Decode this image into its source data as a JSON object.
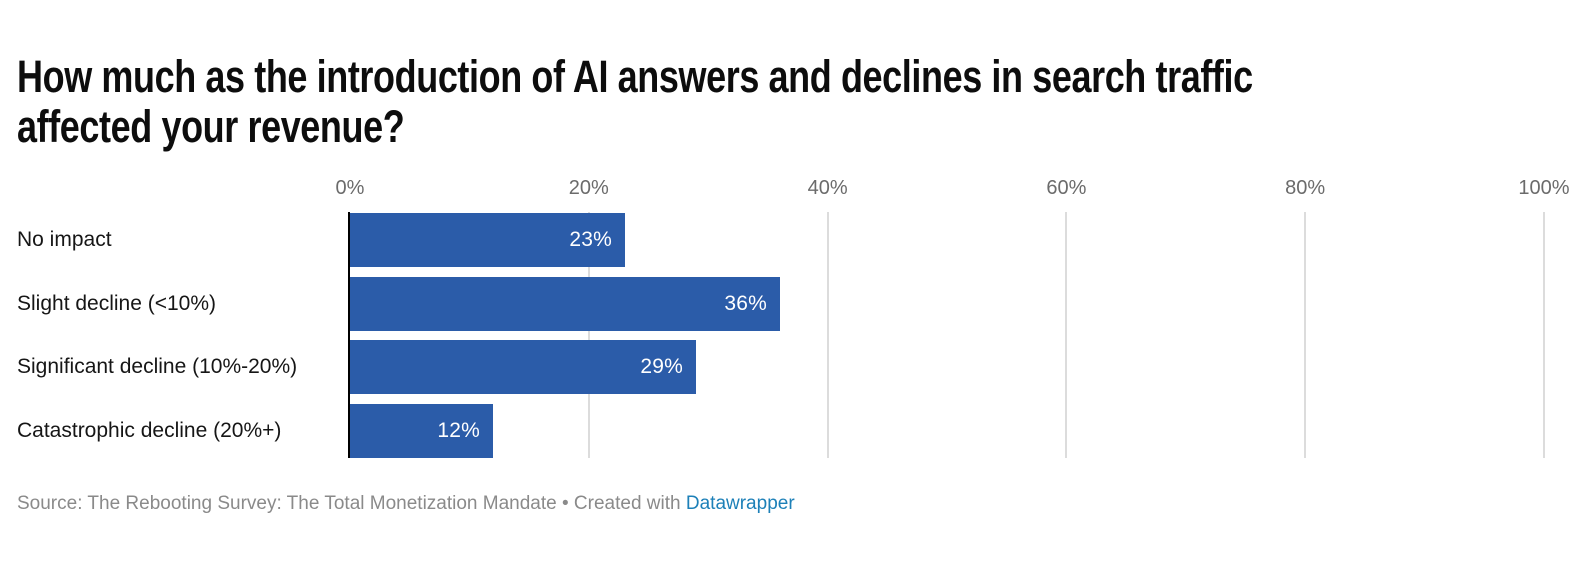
{
  "title": {
    "line1": "How much as the introduction of AI answers and declines in search traffic",
    "line2": "affected your revenue?"
  },
  "chart_data": {
    "type": "bar",
    "orientation": "horizontal",
    "title": "How much as the introduction of AI answers and declines in search traffic affected your revenue?",
    "categories": [
      "No impact",
      "Slight decline (<10%)",
      "Significant decline (10%-20%)",
      "Catastrophic decline (20%+)"
    ],
    "values": [
      23,
      36,
      29,
      12
    ],
    "value_labels": [
      "23%",
      "36%",
      "29%",
      "12%"
    ],
    "x_ticks": [
      {
        "value": 0,
        "label": "0%"
      },
      {
        "value": 20,
        "label": "20%"
      },
      {
        "value": 40,
        "label": "40%"
      },
      {
        "value": 60,
        "label": "60%"
      },
      {
        "value": 80,
        "label": "80%"
      },
      {
        "value": 100,
        "label": "100%"
      }
    ],
    "xlim": [
      0,
      100
    ],
    "grid": true,
    "legend": "none",
    "bar_color": "#2b5ca9"
  },
  "colors": {
    "bar_blue": "#2b5ca9",
    "link_blue": "#1d80b8",
    "axis_line": "#000000",
    "gridline": "#dcdcdc",
    "tick_text": "#6b6b6b",
    "category_text": "#161616",
    "source_text": "#8a8a8a"
  },
  "footer": {
    "text": "Source: The Rebooting Survey: The Total Monetization Mandate • Created with ",
    "link_label": "Datawrapper"
  }
}
